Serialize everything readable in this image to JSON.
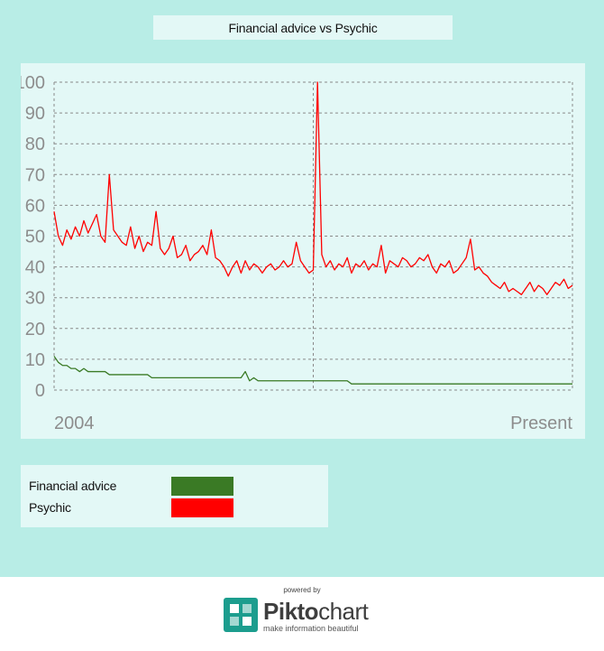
{
  "chart_data": {
    "type": "line",
    "title": "Financial advice vs Psychic",
    "x_start_label": "2004",
    "x_end_label": "Present",
    "ylim": [
      0,
      100
    ],
    "yticks": [
      "0",
      "10",
      "20",
      "30",
      "40",
      "50",
      "60",
      "70",
      "80",
      "90",
      "100"
    ],
    "grid": true,
    "legend_position": "bottom-left",
    "series": [
      {
        "name": "Financial advice",
        "color": "#3a7a25",
        "values": [
          11,
          9,
          8,
          8,
          7,
          7,
          6,
          7,
          6,
          6,
          6,
          6,
          6,
          5,
          5,
          5,
          5,
          5,
          5,
          5,
          5,
          5,
          5,
          4,
          4,
          4,
          4,
          4,
          4,
          4,
          4,
          4,
          4,
          4,
          4,
          4,
          4,
          4,
          4,
          4,
          4,
          4,
          4,
          4,
          4,
          6,
          3,
          4,
          3,
          3,
          3,
          3,
          3,
          3,
          3,
          3,
          3,
          3,
          3,
          3,
          3,
          3,
          3,
          3,
          3,
          3,
          3,
          3,
          3,
          3,
          2,
          2,
          2,
          2,
          2,
          2,
          2,
          2,
          2,
          2,
          2,
          2,
          2,
          2,
          2,
          2,
          2,
          2,
          2,
          2,
          2,
          2,
          2,
          2,
          2,
          2,
          2,
          2,
          2,
          2,
          2,
          2,
          2,
          2,
          2,
          2,
          2,
          2,
          2,
          2,
          2,
          2,
          2,
          2,
          2,
          2,
          2,
          2,
          2,
          2,
          2,
          2,
          2
        ]
      },
      {
        "name": "Psychic",
        "color": "#ff0000",
        "values": [
          58,
          50,
          47,
          52,
          49,
          53,
          50,
          55,
          51,
          54,
          57,
          50,
          48,
          70,
          52,
          50,
          48,
          47,
          53,
          46,
          50,
          45,
          48,
          47,
          58,
          46,
          44,
          46,
          50,
          43,
          44,
          47,
          42,
          44,
          45,
          47,
          44,
          52,
          43,
          42,
          40,
          37,
          40,
          42,
          38,
          42,
          39,
          41,
          40,
          38,
          40,
          41,
          39,
          40,
          42,
          40,
          41,
          48,
          42,
          40,
          38,
          39,
          100,
          44,
          40,
          42,
          39,
          41,
          40,
          43,
          38,
          41,
          40,
          42,
          39,
          41,
          40,
          47,
          38,
          42,
          41,
          40,
          43,
          42,
          40,
          41,
          43,
          42,
          44,
          40,
          38,
          41,
          40,
          42,
          38,
          39,
          41,
          43,
          49,
          39,
          40,
          38,
          37,
          35,
          34,
          33,
          35,
          32,
          33,
          32,
          31,
          33,
          35,
          32,
          34,
          33,
          31,
          33,
          35,
          34,
          36,
          33,
          34
        ]
      }
    ]
  },
  "legend": {
    "items": [
      {
        "label": "Financial advice",
        "color": "#3a7a25"
      },
      {
        "label": "Psychic",
        "color": "#ff0000"
      }
    ]
  },
  "footer": {
    "powered_by": "powered by",
    "brand_part1": "Pikto",
    "brand_part2": "chart",
    "tagline": "make information beautiful"
  }
}
